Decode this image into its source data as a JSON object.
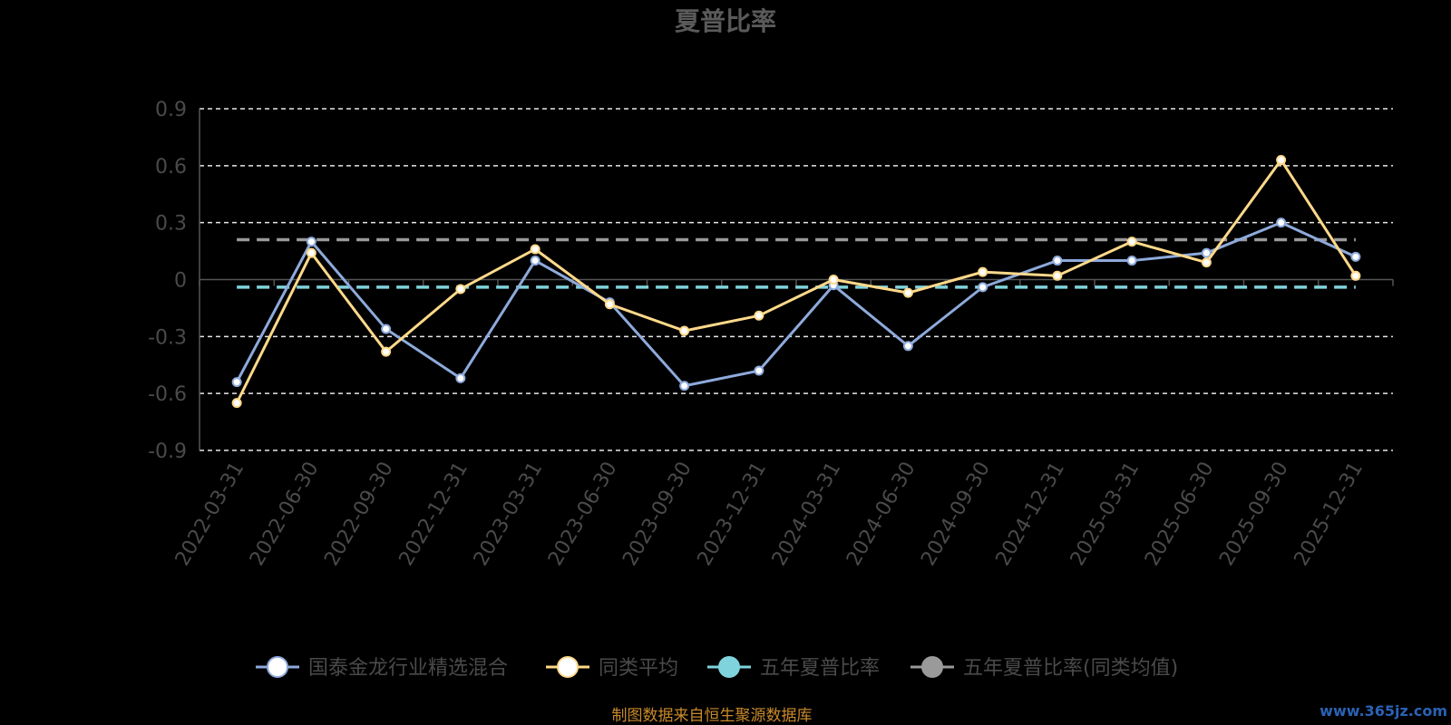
{
  "chart_data": {
    "type": "line",
    "title": "夏普比率",
    "categories": [
      "2022-03-31",
      "2022-06-30",
      "2022-09-30",
      "2022-12-31",
      "2023-03-31",
      "2023-06-30",
      "2023-09-30",
      "2023-12-31",
      "2024-03-31",
      "2024-06-30",
      "2024-09-30",
      "2024-12-31",
      "2025-03-31",
      "2025-06-30",
      "2025-09-30",
      "2025-12-31"
    ],
    "ylim": [
      -0.9,
      0.9
    ],
    "yticks": [
      "0.9",
      "0.6",
      "0.3",
      "0",
      "-0.3",
      "-0.6",
      "-0.9"
    ],
    "ytick_values": [
      0.9,
      0.6,
      0.3,
      0,
      -0.3,
      -0.6,
      -0.9
    ],
    "grid": true,
    "legend_position": "bottom",
    "series": [
      {
        "name": "国泰金龙行业精选混合",
        "color": "#8eaadb",
        "values": [
          -0.54,
          0.2,
          -0.26,
          -0.52,
          0.1,
          -0.12,
          -0.56,
          -0.48,
          -0.03,
          -0.35,
          -0.04,
          0.1,
          0.1,
          0.14,
          0.3,
          0.12
        ]
      },
      {
        "name": "同类平均",
        "color": "#ffd98a",
        "values": [
          -0.65,
          0.14,
          -0.38,
          -0.05,
          0.16,
          -0.13,
          -0.27,
          -0.19,
          0.0,
          -0.07,
          0.04,
          0.02,
          0.2,
          0.09,
          0.63,
          0.02
        ]
      }
    ],
    "reference_lines": [
      {
        "name": "五年夏普比率",
        "color": "#7fd3dc",
        "value": -0.04
      },
      {
        "name": "五年夏普比率(同类均值)",
        "color": "#9a9a9a",
        "value": 0.21
      }
    ]
  },
  "legend": [
    {
      "label": "国泰金龙行业精选混合",
      "color": "#8eaadb",
      "dot": "#ffffff"
    },
    {
      "label": "同类平均",
      "color": "#ffd98a",
      "dot": "#ffffff"
    },
    {
      "label": "五年夏普比率",
      "color": "#7fd3dc",
      "dot": "#7fd3dc"
    },
    {
      "label": "五年夏普比率(同类均值)",
      "color": "#9a9a9a",
      "dot": "#9a9a9a"
    }
  ],
  "source_text": "制图数据来自恒生聚源数据库",
  "watermark": "www.365jz.com"
}
